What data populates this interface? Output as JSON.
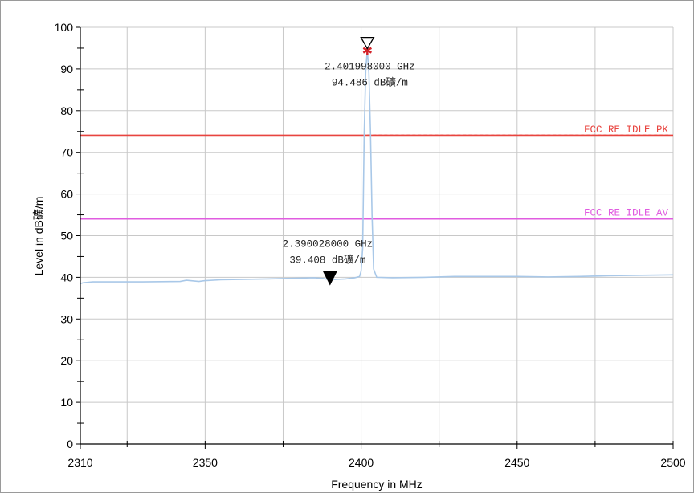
{
  "chart_data": {
    "type": "line",
    "xlabel": "Frequency in MHz",
    "ylabel": "Level in dB礦/m",
    "xlim": [
      2310,
      2500
    ],
    "ylim": [
      0,
      100
    ],
    "x_ticks": [
      2310,
      2350,
      2400,
      2450,
      2500
    ],
    "y_ticks": [
      0,
      10,
      20,
      30,
      40,
      50,
      60,
      70,
      80,
      90,
      100
    ],
    "grid": true,
    "series": [
      {
        "color": "#a9c8e8",
        "x": [
          2310,
          2311,
          2314,
          2330,
          2342,
          2344,
          2348,
          2350,
          2355,
          2370,
          2380,
          2385,
          2388,
          2390,
          2392,
          2395,
          2398,
          2399.5,
          2400,
          2400.5,
          2401,
          2401.5,
          2402,
          2402.5,
          2403,
          2403.5,
          2404,
          2405,
          2410,
          2420,
          2430,
          2440,
          2450,
          2460,
          2470,
          2480,
          2490,
          2500
        ],
        "y": [
          38.5,
          38.7,
          38.9,
          38.9,
          39.0,
          39.3,
          39.0,
          39.2,
          39.4,
          39.6,
          39.8,
          39.9,
          39.7,
          39.4,
          39.5,
          39.6,
          39.9,
          40.2,
          41.5,
          47.0,
          75.0,
          90.0,
          94.486,
          89.0,
          75.0,
          55.0,
          42.0,
          40.0,
          39.9,
          40.0,
          40.2,
          40.2,
          40.2,
          40.1,
          40.2,
          40.4,
          40.5,
          40.6
        ]
      }
    ],
    "limit_lines": [
      {
        "name": "FCC RE IDLE PK",
        "value": 74,
        "color": "#e8443f"
      },
      {
        "name": "FCC RE IDLE AV",
        "value": 54,
        "color": "#e05ce0"
      }
    ],
    "markers": [
      {
        "x": 2402.0,
        "y": 94.486,
        "label_freq": "2.401998000 GHz",
        "label_level": "94.486 dB礦/m",
        "style": "open-triangle"
      },
      {
        "x": 2390.028,
        "y": 39.408,
        "label_freq": "2.390028000 GHz",
        "label_level": "39.408 dB礦/m",
        "style": "filled-triangle"
      }
    ]
  }
}
